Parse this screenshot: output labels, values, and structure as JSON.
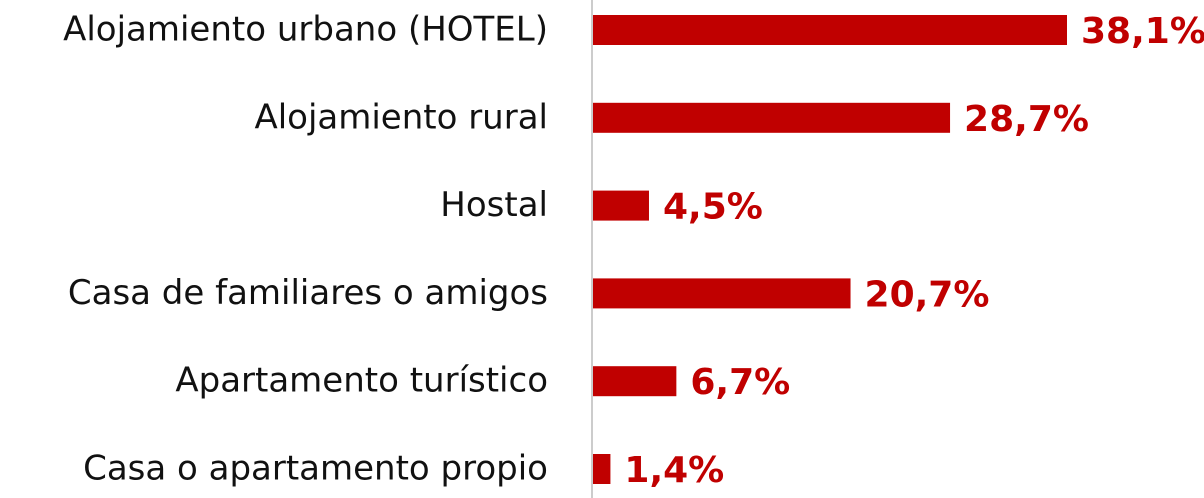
{
  "chart_data": {
    "type": "bar",
    "orientation": "horizontal",
    "categories": [
      "Alojamiento urbano (HOTEL)",
      "Alojamiento rural",
      "Hostal",
      "Casa de familiares o amigos",
      "Apartamento turístico",
      "Casa o apartamento propio"
    ],
    "values": [
      38.1,
      28.7,
      4.5,
      20.7,
      6.7,
      1.4
    ],
    "value_labels": [
      "38,1%",
      "28,7%",
      "4,5%",
      "20,7%",
      "6,7%",
      "1,4%"
    ],
    "color": "#c00000"
  }
}
